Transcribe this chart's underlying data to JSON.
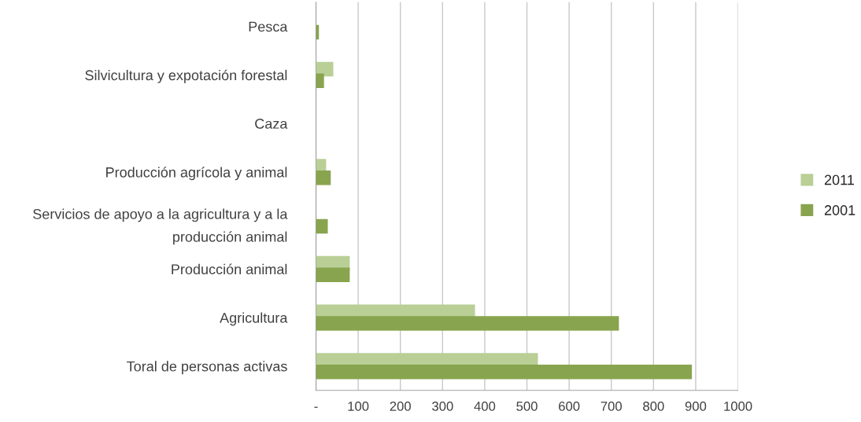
{
  "chart_data": {
    "type": "bar",
    "orientation": "horizontal",
    "categories": [
      "Pesca",
      "Silvicultura y expotación forestal",
      "Caza",
      "Producción agrícola y animal",
      "Servicios de apoyo a la agricultura y a la producción animal",
      "Producción animal",
      "Agricultura",
      "Toral de personas activas"
    ],
    "series": [
      {
        "name": "2011",
        "color": "#b9cf96",
        "values": [
          null,
          41,
          null,
          24,
          null,
          80,
          377,
          526
        ]
      },
      {
        "name": "2001",
        "color": "#88a44e",
        "values": [
          7,
          19,
          null,
          35,
          28,
          80,
          718,
          891
        ]
      }
    ],
    "xlim": [
      0,
      1000
    ],
    "xticks": [
      {
        "value": 0,
        "label": "-"
      },
      100,
      200,
      300,
      400,
      500,
      600,
      700,
      800,
      900,
      1000
    ],
    "grid": "x",
    "legend": "right"
  }
}
